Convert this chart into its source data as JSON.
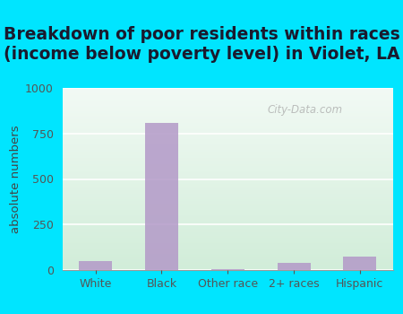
{
  "title": "Breakdown of poor residents within races\n(income below poverty level) in Violet, LA",
  "categories": [
    "White",
    "Black",
    "Other race",
    "2+ races",
    "Hispanic"
  ],
  "values": [
    50,
    810,
    5,
    40,
    75
  ],
  "bar_color": "#b399c8",
  "ylabel": "absolute numbers",
  "ylim": [
    0,
    1000
  ],
  "yticks": [
    0,
    250,
    500,
    750,
    1000
  ],
  "background_color": "#00e5ff",
  "plot_bg_top": "#e8f5f0",
  "plot_bg_bottom": "#d4edda",
  "title_fontsize": 13.5,
  "axis_label_fontsize": 9.5,
  "tick_fontsize": 9,
  "watermark": "City-Data.com",
  "title_color": "#1a1a2e",
  "tick_color": "#555555",
  "ylabel_color": "#444444"
}
